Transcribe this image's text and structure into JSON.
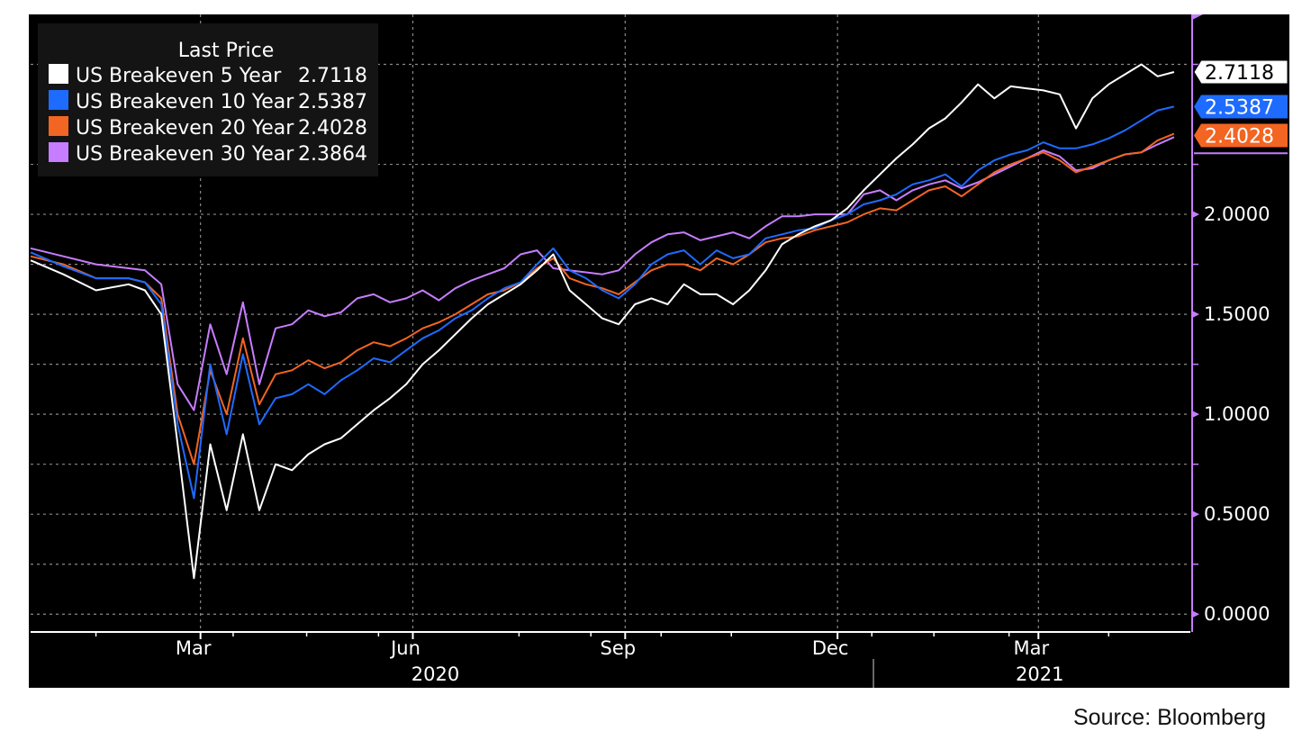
{
  "source": "Source: Bloomberg",
  "legend": {
    "title": "Last Price"
  },
  "colors": {
    "background": "#000000",
    "grid": "#8a8a8a",
    "axis_accent": "#c77dff"
  },
  "chart_data": {
    "type": "line",
    "x_unit": "weeks since 2020-01-03",
    "xlim": [
      0,
      71
    ],
    "ylim": [
      -0.08,
      3.0
    ],
    "y_ticks": [
      0.0,
      0.5,
      1.0,
      1.5,
      2.0
    ],
    "y_tick_labels": [
      "0.0000",
      "0.5000",
      "1.0000",
      "1.5000",
      "2.0000"
    ],
    "x_ticks": [
      {
        "label": "Mar",
        "x": 10.4
      },
      {
        "label": "Jun",
        "x": 23.4
      },
      {
        "label": "Sep",
        "x": 36.4
      },
      {
        "label": "Dec",
        "x": 49.4
      },
      {
        "label": "Mar",
        "x": 61.7
      }
    ],
    "minor_x_ticks": [
      4.0,
      12.4,
      16.9,
      21.3,
      29.9,
      34.3,
      38.6,
      42.9,
      51.5,
      55.3,
      59.9,
      66.0
    ],
    "years": [
      {
        "label": "2020",
        "x": 25.0
      },
      {
        "label": "2021",
        "x": 62.0
      }
    ],
    "year_divider_x": 51.6,
    "grid": true,
    "legend_position": "top-left",
    "series": [
      {
        "name": "US Breakeven 30 Year",
        "color": "#c77dff",
        "last": "2.3864",
        "label_shown": false,
        "x": [
          0,
          2,
          4,
          6,
          7,
          8,
          9,
          10,
          11,
          12,
          13,
          14,
          15,
          16,
          17,
          18,
          19,
          20,
          21,
          22,
          23,
          24,
          25,
          26,
          27,
          28,
          29,
          30,
          31,
          32,
          33,
          34,
          35,
          36,
          37,
          38,
          39,
          40,
          41,
          42,
          43,
          44,
          45,
          46,
          47,
          48,
          49,
          50,
          51,
          52,
          53,
          54,
          55,
          56,
          57,
          58,
          59,
          60,
          61,
          62,
          63,
          64,
          65,
          66,
          67,
          68,
          69,
          70
        ],
        "y": [
          1.83,
          1.79,
          1.75,
          1.73,
          1.72,
          1.65,
          1.15,
          1.02,
          1.45,
          1.2,
          1.56,
          1.15,
          1.43,
          1.45,
          1.52,
          1.49,
          1.51,
          1.58,
          1.6,
          1.56,
          1.58,
          1.62,
          1.57,
          1.63,
          1.67,
          1.7,
          1.73,
          1.8,
          1.82,
          1.73,
          1.72,
          1.71,
          1.7,
          1.72,
          1.8,
          1.86,
          1.9,
          1.91,
          1.87,
          1.89,
          1.91,
          1.88,
          1.94,
          1.99,
          1.99,
          2.0,
          2.0,
          2.0,
          2.1,
          2.12,
          2.07,
          2.12,
          2.15,
          2.17,
          2.13,
          2.16,
          2.2,
          2.24,
          2.28,
          2.32,
          2.29,
          2.22,
          2.23,
          2.27,
          2.3,
          2.31,
          2.35,
          2.3864
        ]
      },
      {
        "name": "US Breakeven 20 Year",
        "color": "#f26522",
        "last": "2.4028",
        "label_shown": true,
        "x": [
          0,
          2,
          4,
          6,
          7,
          8,
          9,
          10,
          11,
          12,
          13,
          14,
          15,
          16,
          17,
          18,
          19,
          20,
          21,
          22,
          23,
          24,
          25,
          26,
          27,
          28,
          29,
          30,
          31,
          32,
          33,
          34,
          35,
          36,
          37,
          38,
          39,
          40,
          41,
          42,
          43,
          44,
          45,
          46,
          47,
          48,
          49,
          50,
          51,
          52,
          53,
          54,
          55,
          56,
          57,
          58,
          59,
          60,
          61,
          62,
          63,
          64,
          65,
          66,
          67,
          68,
          69,
          70
        ],
        "y": [
          1.79,
          1.75,
          1.68,
          1.68,
          1.66,
          1.58,
          1.0,
          0.75,
          1.22,
          1.0,
          1.38,
          1.05,
          1.2,
          1.22,
          1.27,
          1.23,
          1.26,
          1.32,
          1.36,
          1.34,
          1.38,
          1.43,
          1.46,
          1.5,
          1.55,
          1.6,
          1.62,
          1.66,
          1.73,
          1.78,
          1.68,
          1.65,
          1.63,
          1.6,
          1.66,
          1.72,
          1.75,
          1.75,
          1.72,
          1.78,
          1.75,
          1.8,
          1.86,
          1.88,
          1.89,
          1.92,
          1.94,
          1.96,
          2.0,
          2.03,
          2.02,
          2.07,
          2.12,
          2.14,
          2.09,
          2.15,
          2.21,
          2.25,
          2.28,
          2.31,
          2.27,
          2.21,
          2.24,
          2.27,
          2.3,
          2.31,
          2.37,
          2.4028
        ]
      },
      {
        "name": "US Breakeven 10 Year",
        "color": "#1e6bff",
        "last": "2.5387",
        "label_shown": true,
        "x": [
          0,
          2,
          4,
          6,
          7,
          8,
          9,
          10,
          11,
          12,
          13,
          14,
          15,
          16,
          17,
          18,
          19,
          20,
          21,
          22,
          23,
          24,
          25,
          26,
          27,
          28,
          29,
          30,
          31,
          32,
          33,
          34,
          35,
          36,
          37,
          38,
          39,
          40,
          41,
          42,
          43,
          44,
          45,
          46,
          47,
          48,
          49,
          50,
          51,
          52,
          53,
          54,
          55,
          56,
          57,
          58,
          59,
          60,
          61,
          62,
          63,
          64,
          65,
          66,
          67,
          68,
          69,
          70
        ],
        "y": [
          1.81,
          1.74,
          1.68,
          1.68,
          1.66,
          1.55,
          0.95,
          0.58,
          1.25,
          0.9,
          1.3,
          0.95,
          1.08,
          1.1,
          1.15,
          1.1,
          1.17,
          1.22,
          1.28,
          1.26,
          1.32,
          1.38,
          1.42,
          1.48,
          1.52,
          1.58,
          1.63,
          1.66,
          1.75,
          1.83,
          1.72,
          1.68,
          1.62,
          1.58,
          1.65,
          1.75,
          1.8,
          1.82,
          1.75,
          1.82,
          1.78,
          1.8,
          1.88,
          1.9,
          1.92,
          1.93,
          1.97,
          2.0,
          2.05,
          2.07,
          2.1,
          2.15,
          2.17,
          2.2,
          2.14,
          2.22,
          2.27,
          2.3,
          2.32,
          2.36,
          2.33,
          2.33,
          2.35,
          2.38,
          2.42,
          2.47,
          2.52,
          2.5387
        ]
      },
      {
        "name": "US Breakeven 5 Year",
        "color": "#ffffff",
        "last": "2.7118",
        "label_shown": true,
        "x": [
          0,
          2,
          4,
          6,
          7,
          8,
          9,
          10,
          11,
          12,
          13,
          14,
          15,
          16,
          17,
          18,
          19,
          20,
          21,
          22,
          23,
          24,
          25,
          26,
          27,
          28,
          29,
          30,
          31,
          32,
          33,
          34,
          35,
          36,
          37,
          38,
          39,
          40,
          41,
          42,
          43,
          44,
          45,
          46,
          47,
          48,
          49,
          50,
          51,
          52,
          53,
          54,
          55,
          56,
          57,
          58,
          59,
          60,
          61,
          62,
          63,
          64,
          65,
          66,
          67,
          68,
          69,
          70
        ],
        "y": [
          1.77,
          1.7,
          1.62,
          1.65,
          1.62,
          1.5,
          0.85,
          0.18,
          0.85,
          0.52,
          0.9,
          0.52,
          0.75,
          0.72,
          0.8,
          0.85,
          0.88,
          0.95,
          1.02,
          1.08,
          1.15,
          1.25,
          1.32,
          1.4,
          1.48,
          1.55,
          1.6,
          1.65,
          1.72,
          1.8,
          1.62,
          1.55,
          1.48,
          1.45,
          1.55,
          1.58,
          1.55,
          1.65,
          1.6,
          1.6,
          1.55,
          1.62,
          1.72,
          1.85,
          1.9,
          1.94,
          1.97,
          2.03,
          2.12,
          2.2,
          2.28,
          2.35,
          2.43,
          2.48,
          2.56,
          2.65,
          2.58,
          2.64,
          2.63,
          2.62,
          2.6,
          2.43,
          2.58,
          2.65,
          2.7,
          2.75,
          2.69,
          2.7118
        ]
      }
    ]
  }
}
